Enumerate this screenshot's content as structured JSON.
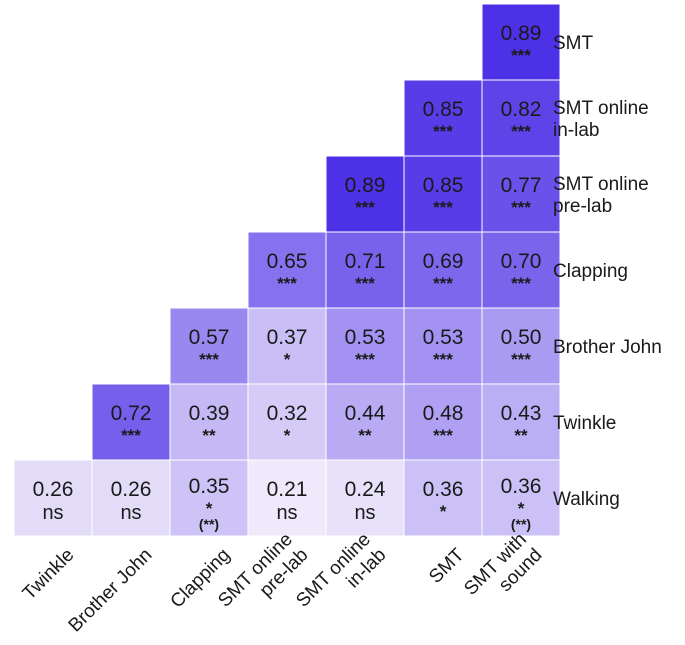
{
  "chart_data": {
    "type": "heatmap",
    "title": "",
    "columns": [
      "Twinkle",
      "Brother John",
      "Clapping",
      "SMT online pre-lab",
      "SMT online in-lab",
      "SMT",
      "SMT with sound"
    ],
    "rows": [
      "SMT",
      "SMT online in-lab",
      "SMT online pre-lab",
      "Clapping",
      "Brother John",
      "Twinkle",
      "Walking"
    ],
    "column_labels": [
      [
        "Twinkle"
      ],
      [
        "Brother John"
      ],
      [
        "Clapping"
      ],
      [
        "SMT online",
        "pre-lab"
      ],
      [
        "SMT online",
        "in-lab"
      ],
      [
        "SMT"
      ],
      [
        "SMT with",
        "sound"
      ]
    ],
    "row_labels": [
      [
        "SMT"
      ],
      [
        "SMT online",
        "in-lab"
      ],
      [
        "SMT online",
        "pre-lab"
      ],
      [
        "Clapping"
      ],
      [
        "Brother John"
      ],
      [
        "Twinkle"
      ],
      [
        "Walking"
      ]
    ],
    "cells": [
      [
        null,
        null,
        null,
        null,
        null,
        null,
        {
          "v": "0.89",
          "sig": "***"
        }
      ],
      [
        null,
        null,
        null,
        null,
        null,
        {
          "v": "0.85",
          "sig": "***"
        },
        {
          "v": "0.82",
          "sig": "***"
        }
      ],
      [
        null,
        null,
        null,
        null,
        {
          "v": "0.89",
          "sig": "***"
        },
        {
          "v": "0.85",
          "sig": "***"
        },
        {
          "v": "0.77",
          "sig": "***"
        }
      ],
      [
        null,
        null,
        null,
        {
          "v": "0.65",
          "sig": "***"
        },
        {
          "v": "0.71",
          "sig": "***"
        },
        {
          "v": "0.69",
          "sig": "***"
        },
        {
          "v": "0.70",
          "sig": "***"
        }
      ],
      [
        null,
        null,
        {
          "v": "0.57",
          "sig": "***"
        },
        {
          "v": "0.37",
          "sig": "*"
        },
        {
          "v": "0.53",
          "sig": "***"
        },
        {
          "v": "0.53",
          "sig": "***"
        },
        {
          "v": "0.50",
          "sig": "***"
        }
      ],
      [
        null,
        {
          "v": "0.72",
          "sig": "***"
        },
        {
          "v": "0.39",
          "sig": "**"
        },
        {
          "v": "0.32",
          "sig": "*"
        },
        {
          "v": "0.44",
          "sig": "**"
        },
        {
          "v": "0.48",
          "sig": "***"
        },
        {
          "v": "0.43",
          "sig": "**"
        }
      ],
      [
        {
          "v": "0.26",
          "sig": "ns"
        },
        {
          "v": "0.26",
          "sig": "ns"
        },
        {
          "v": "0.35",
          "sig": "*",
          "sig2": "(**)"
        },
        {
          "v": "0.21",
          "sig": "ns"
        },
        {
          "v": "0.24",
          "sig": "ns"
        },
        {
          "v": "0.36",
          "sig": "*"
        },
        {
          "v": "0.36",
          "sig": "*",
          "sig2": "(**)"
        }
      ]
    ],
    "color_scale": {
      "low": "#f1ecfb",
      "high": "#4b2ee6",
      "min": 0.2,
      "max": 0.9
    }
  }
}
